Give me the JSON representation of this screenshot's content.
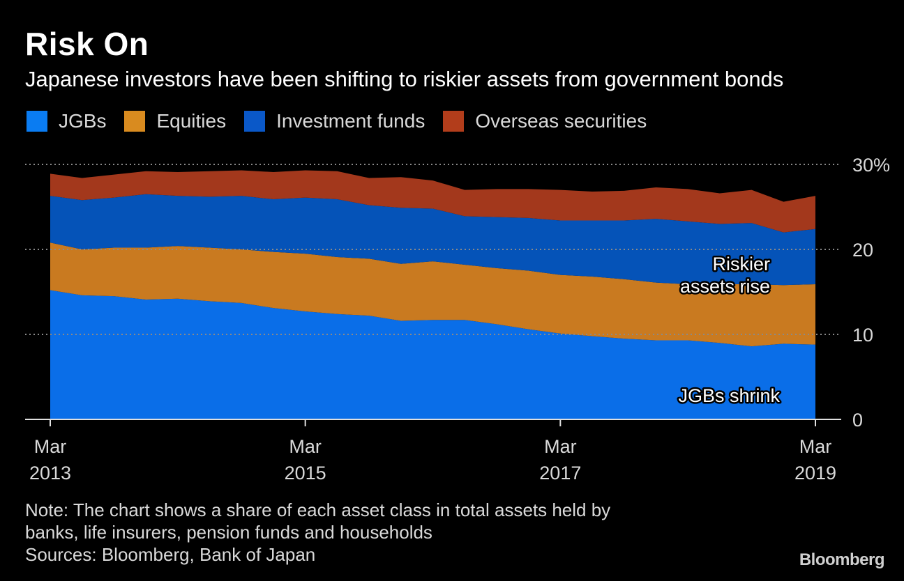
{
  "title": "Risk On",
  "subtitle": "Japanese investors have been shifting to riskier assets from government bonds",
  "legend": [
    {
      "label": "JGBs",
      "color": "#0a7cf2"
    },
    {
      "label": "Equities",
      "color": "#d98b1f"
    },
    {
      "label": "Investment funds",
      "color": "#0a58c8"
    },
    {
      "label": "Overseas securities",
      "color": "#b23d1b"
    }
  ],
  "note": {
    "line1": "Note: The chart shows a share of each asset class in total assets held by",
    "line2": "banks, life insurers, pension funds and households",
    "sources": "Sources: Bloomberg, Bank of Japan"
  },
  "logo": "Bloomberg",
  "chart_data": {
    "type": "area",
    "stacked": true,
    "title": "Risk On",
    "x": [
      "2013-03",
      "2013-06",
      "2013-09",
      "2013-12",
      "2014-03",
      "2014-06",
      "2014-09",
      "2014-12",
      "2015-03",
      "2015-06",
      "2015-09",
      "2015-12",
      "2016-03",
      "2016-06",
      "2016-09",
      "2016-12",
      "2017-03",
      "2017-06",
      "2017-09",
      "2017-12",
      "2018-03",
      "2018-06",
      "2018-09",
      "2018-12",
      "2019-03"
    ],
    "x_tick_labels": [
      {
        "index": 0,
        "month": "Mar",
        "year": "2013"
      },
      {
        "index": 8,
        "month": "Mar",
        "year": "2015"
      },
      {
        "index": 16,
        "month": "Mar",
        "year": "2017"
      },
      {
        "index": 24,
        "month": "Mar",
        "year": "2019"
      }
    ],
    "y_ticks": [
      {
        "value": 0,
        "label": "0"
      },
      {
        "value": 10,
        "label": "10"
      },
      {
        "value": 20,
        "label": "20"
      },
      {
        "value": 30,
        "label": "30%"
      }
    ],
    "ylim": [
      0,
      30
    ],
    "series": [
      {
        "name": "JGBs",
        "color": "#0a6ee8",
        "values": [
          15.2,
          14.6,
          14.5,
          14.1,
          14.2,
          13.9,
          13.7,
          13.1,
          12.7,
          12.4,
          12.2,
          11.6,
          11.7,
          11.7,
          11.2,
          10.6,
          10.1,
          9.8,
          9.5,
          9.3,
          9.3,
          9.0,
          8.6,
          8.9,
          8.8
        ]
      },
      {
        "name": "Equities",
        "color": "#c97a20",
        "values": [
          5.6,
          5.4,
          5.7,
          6.1,
          6.2,
          6.3,
          6.3,
          6.6,
          6.8,
          6.7,
          6.7,
          6.7,
          6.9,
          6.5,
          6.6,
          6.9,
          6.9,
          7.0,
          7.0,
          6.8,
          6.6,
          6.9,
          7.3,
          6.9,
          7.1
        ]
      },
      {
        "name": "Investment funds",
        "color": "#0553b8",
        "values": [
          5.5,
          5.8,
          5.9,
          6.3,
          5.9,
          6.0,
          6.3,
          6.2,
          6.6,
          6.8,
          6.3,
          6.6,
          6.2,
          5.7,
          6.0,
          6.2,
          6.4,
          6.6,
          6.9,
          7.5,
          7.4,
          7.1,
          7.2,
          6.2,
          6.5
        ]
      },
      {
        "name": "Overseas securities",
        "color": "#a3381c",
        "values": [
          2.6,
          2.6,
          2.7,
          2.7,
          2.8,
          3.0,
          3.0,
          3.2,
          3.2,
          3.3,
          3.2,
          3.6,
          3.3,
          3.1,
          3.3,
          3.4,
          3.6,
          3.4,
          3.5,
          3.7,
          3.8,
          3.6,
          3.9,
          3.6,
          3.9
        ]
      }
    ],
    "annotations": [
      {
        "text_line1": "Riskier",
        "text_line2": "assets rise"
      },
      {
        "text": "JGBs shrink"
      }
    ]
  }
}
